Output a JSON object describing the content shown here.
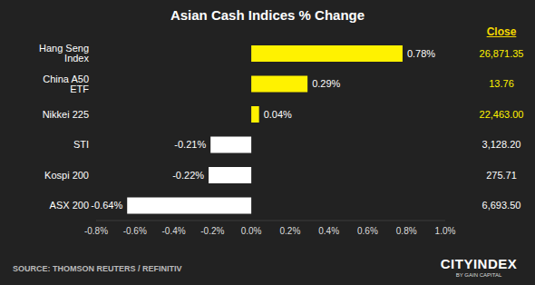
{
  "chart_data": {
    "type": "bar",
    "orientation": "horizontal",
    "title": "Asian Cash Indices % Change",
    "categories": [
      "Hang Seng Index",
      "China A50 ETF",
      "Nikkei 225",
      "STI",
      "Kospi 200",
      "ASX 200"
    ],
    "values": [
      0.78,
      0.29,
      0.04,
      -0.21,
      -0.22,
      -0.64
    ],
    "value_labels": [
      "0.78%",
      "0.29%",
      "0.04%",
      "-0.21%",
      "-0.22%",
      "-0.64%"
    ],
    "data_labels": true,
    "colors": [
      "#fff200",
      "#fff200",
      "#fff200",
      "#ffffff",
      "#ffffff",
      "#ffffff"
    ],
    "xlim": [
      -0.8,
      1.0
    ],
    "xticks": [
      {
        "value": -0.8,
        "label": "-0.8%"
      },
      {
        "value": -0.6,
        "label": "-0.6%"
      },
      {
        "value": -0.4,
        "label": "-0.4%"
      },
      {
        "value": -0.2,
        "label": "-0.2%"
      },
      {
        "value": 0,
        "label": "0.0%"
      },
      {
        "value": 0.2,
        "label": "0.2%"
      },
      {
        "value": 0.4,
        "label": "0.4%"
      },
      {
        "value": 0.6,
        "label": "0.6%"
      },
      {
        "value": 0.8,
        "label": "0.8%"
      },
      {
        "value": 1.0,
        "label": "1.0%"
      }
    ],
    "grid": false,
    "close_title": "Close",
    "close_values": [
      "26,871.35",
      "13.76",
      "22,463.00",
      "3,128.20",
      "275.71",
      "6,693.50"
    ],
    "source": "SOURCE: THOMSON REUTERS / REFINITIV",
    "logo": "CITYINDEX",
    "logo_subtitle": "BY GAIN CAPITAL"
  }
}
